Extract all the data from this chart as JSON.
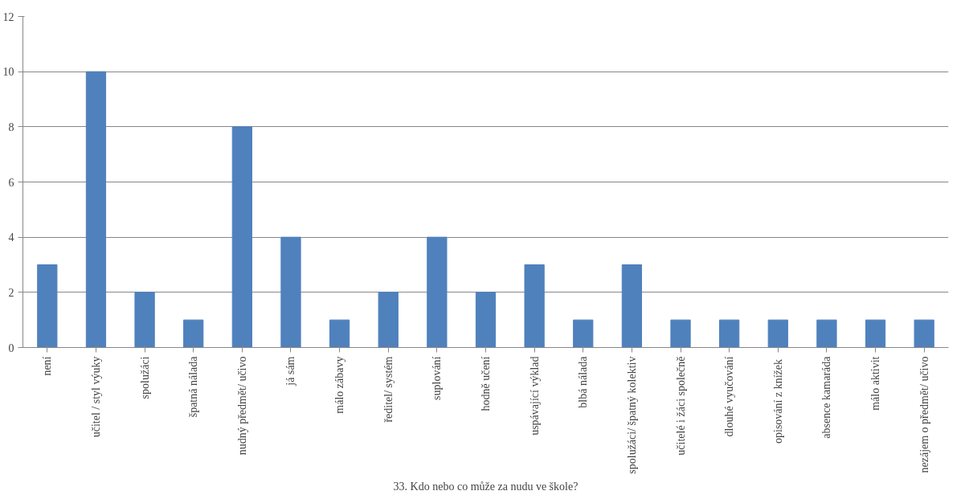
{
  "chart_data": {
    "type": "bar",
    "xlabel": "33. Kdo nebo co může za nudu ve škole?",
    "categories": [
      "není",
      "učitel / styl výuky",
      "spolužáci",
      "špatná nálada",
      "nudný předmět/ učivo",
      "já sám",
      "málo zábavy",
      "ředitel/ systém",
      "suplování",
      "hodně učení",
      "uspávající výklad",
      "blbá nálada",
      "spolužáci/ špatný kolektiv",
      "učitelé i žáci společně",
      "dlouhé vyučování",
      "opisování  z knížek",
      "absence kamaráda",
      "málo aktivit",
      "nezájem o předmět/ učivo"
    ],
    "values": [
      3,
      10,
      2,
      1,
      8,
      4,
      1,
      2,
      4,
      2,
      3,
      1,
      3,
      1,
      1,
      1,
      1,
      1,
      1
    ],
    "color": "#4f81bd",
    "ylim": [
      0,
      12
    ],
    "yticks": [
      0,
      2,
      4,
      6,
      8,
      10,
      12
    ],
    "grid": "y"
  }
}
